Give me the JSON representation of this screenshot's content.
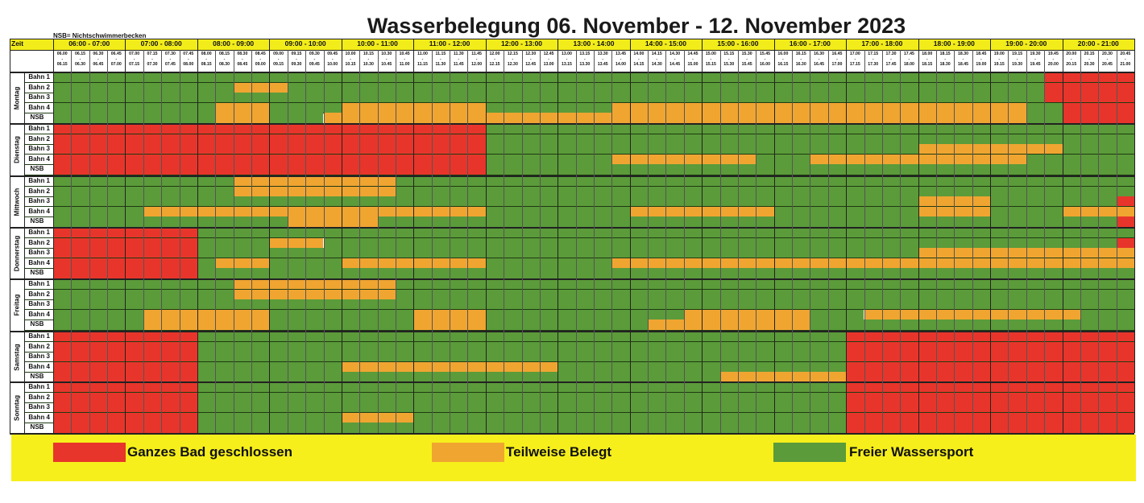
{
  "title": "Wasserbelegung 06. November - 12. November 2023",
  "nsb_note": "NSB= Nichtschwimmerbecken",
  "zeit_label": "Zeit",
  "colors": {
    "closed": "#e8352b",
    "partial": "#f0a531",
    "free": "#5b9b3a",
    "header": "#f2ec1a"
  },
  "hours": [
    "06:00 - 07:00",
    "07:00 - 08:00",
    "08:00 - 09:00",
    "09:00 - 10:00",
    "10:00 - 11:00",
    "11:00 - 12:00",
    "12:00 - 13:00",
    "13:00 - 14:00",
    "14:00 - 15:00",
    "15:00 - 16:00",
    "16:00 - 17:00",
    "17:00 - 18:00",
    "18:00 - 19:00",
    "19:00 - 20:00",
    "20:00 - 21:00"
  ],
  "quarters": [
    [
      "06.00",
      "06.15"
    ],
    [
      "06.15",
      "06.30"
    ],
    [
      "06.30",
      "06.45"
    ],
    [
      "06.45",
      "07.00"
    ],
    [
      "07.00",
      "07.15"
    ],
    [
      "07.15",
      "07.30"
    ],
    [
      "07.30",
      "07.45"
    ],
    [
      "07.45",
      "08.00"
    ],
    [
      "08.00",
      "08.15"
    ],
    [
      "08.15",
      "08.30"
    ],
    [
      "08.30",
      "08.45"
    ],
    [
      "08.45",
      "09.00"
    ],
    [
      "09.00",
      "09.15"
    ],
    [
      "09.15",
      "09.30"
    ],
    [
      "09.30",
      "09.45"
    ],
    [
      "09.45",
      "10.00"
    ],
    [
      "10.00",
      "10.15"
    ],
    [
      "10.15",
      "10.30"
    ],
    [
      "10.30",
      "10.45"
    ],
    [
      "10.45",
      "11.00"
    ],
    [
      "11.00",
      "11.15"
    ],
    [
      "11.15",
      "11.30"
    ],
    [
      "11.30",
      "11.45"
    ],
    [
      "11.45",
      "12.00"
    ],
    [
      "12.00",
      "12.15"
    ],
    [
      "12.15",
      "12.30"
    ],
    [
      "12.30",
      "12.45"
    ],
    [
      "12.45",
      "13.00"
    ],
    [
      "13.00",
      "13.15"
    ],
    [
      "13.15",
      "13.30"
    ],
    [
      "13.30",
      "13.45"
    ],
    [
      "13.45",
      "14.00"
    ],
    [
      "14.00",
      "14.15"
    ],
    [
      "14.15",
      "14.30"
    ],
    [
      "14.30",
      "14.45"
    ],
    [
      "14.45",
      "15.00"
    ],
    [
      "15.00",
      "15.15"
    ],
    [
      "15.15",
      "15.30"
    ],
    [
      "15.30",
      "15.45"
    ],
    [
      "15.45",
      "16.00"
    ],
    [
      "16.00",
      "16.15"
    ],
    [
      "16.15",
      "16.30"
    ],
    [
      "16.30",
      "16.45"
    ],
    [
      "16.45",
      "17.00"
    ],
    [
      "17.00",
      "17.15"
    ],
    [
      "17.15",
      "17.30"
    ],
    [
      "17.30",
      "17.45"
    ],
    [
      "17.45",
      "18.00"
    ],
    [
      "18.00",
      "18.15"
    ],
    [
      "18.15",
      "18.30"
    ],
    [
      "18.30",
      "18.45"
    ],
    [
      "18.45",
      "19.00"
    ],
    [
      "19.00",
      "19.15"
    ],
    [
      "19.15",
      "19.30"
    ],
    [
      "19.30",
      "19.45"
    ],
    [
      "19.45",
      "20.00"
    ],
    [
      "20.00",
      "20.15"
    ],
    [
      "20.15",
      "20.30"
    ],
    [
      "20.30",
      "20.45"
    ],
    [
      "20.45",
      "21.00"
    ]
  ],
  "days": [
    {
      "name": "Montag",
      "lanes": [
        {
          "label": "Bahn 1",
          "cells": "FFFFFFFFFFFFFFFFFFFFFFFFFFFFFFFFFFFFFFFFFFFFFFFFFFFFFFFCCCCC"
        },
        {
          "label": "Bahn 2",
          "cells": "FFFFFFFFFFPPPFFFFFFFFFFFFFFFFFFFFFFFFFFFFFFFFFFFFFFFFFFCCCCC"
        },
        {
          "label": "Bahn 3",
          "cells": "FFFFFFFFFFFFFFFFFFFFFFFFFFFFFFFFFFFFFFFFFFFFFFFFFFFFFFFCCCCC"
        },
        {
          "label": "Bahn 4",
          "cells": "FFFFFFFFFPPPFFFFPPPPPPPPFFFFFFFPPPPPPPPPPPPPPPPPPPPPPPFFCCCCC"
        },
        {
          "label": "NSB",
          "cells": "FFFFFFFFFPPPFFFPPPPPPPPPPPPPPPPPPPPPPPPPPPPPPPPPPPPPPPFFCCCCC"
        }
      ]
    },
    {
      "name": "Dienstag",
      "lanes": [
        {
          "label": "Bahn 1",
          "cells": "CCCCCCCCCCCCCCCCCCCCCCCCFFFFFFFFFFFFFFFFFFFFFFFFFFFFFFFFFFFFFC"
        },
        {
          "label": "Bahn 2",
          "cells": "CCCCCCCCCCCCCCCCCCCCCCCCFFFFFFFFFFFFFFFFFFFFFFFFFFFFFFFFFFFFFC"
        },
        {
          "label": "Bahn 3",
          "cells": "CCCCCCCCCCCCCCCCCCCCCCCCFFFFFFFFFFFFFFFFFFFFFFFFPPPPPPPPFFFFFC"
        },
        {
          "label": "Bahn 4",
          "cells": "CCCCCCCCCCCCCCCCCCCCCCCCFFFFFFFPPPPPPPPFFFPPPPPPPPPPPPFFFFFFFC"
        },
        {
          "label": "NSB",
          "cells": "CCCCCCCCCCCCCCCCCCCCCCCCFFFFFFFFFFFFFFFFFFFFFFFFFFFFFFFFFFFFFC"
        }
      ]
    },
    {
      "name": "Mittwoch",
      "lanes": [
        {
          "label": "Bahn 1",
          "cells": "FFFFFFFFFFPPPPPPPPPFFFFFFFFFFFFFFFFFFFFFFFFFFFFFFFFFFFFFFFFFC"
        },
        {
          "label": "Bahn 2",
          "cells": "FFFFFFFFFFPPPPPPPPPFFFFFFFFFFFFFFFFFFFFFFFFFFFFFFFFFFFFFFFFFC"
        },
        {
          "label": "Bahn 3",
          "cells": "FFFFFFFFFFFFFFFFFFFFFFFFFFFFFFFFFFFFFFFFFFFFFFFFPPPPFFFFFFFC"
        },
        {
          "label": "Bahn 4",
          "cells": "FFFFFPPPPPPPPPPPPPPPPPPPFFFFFFFFPPPPPPPPFFFFFFFFPPPPFFFFPPPPPC"
        },
        {
          "label": "NSB",
          "cells": "FFFFFFFFFFFFFPPPPPFFFFFFFFFFFFFFFFFFFFFFFFFFFFFFFFFFFFFFFFFC"
        }
      ]
    },
    {
      "name": "Donnerstag",
      "lanes": [
        {
          "label": "Bahn 1",
          "cells": "CCCCCCCCFFFFFFFFFFFFFFFFFFFFFFFFFFFFFFFFFFFFFFFFFFFFFFFFFFFFC"
        },
        {
          "label": "Bahn 2",
          "cells": "CCCCCCCCFFFFPPPFFFFFFFFFFFFFFFFFFFFFFFFFFFFFFFFFFFFFFFFFFFFC"
        },
        {
          "label": "Bahn 3",
          "cells": "CCCCCCCCFFFFFFFFFFFFFFFFFFFFFFFFFFFFFFFFFFFFFFFFPPPPPPPPPPPPPC"
        },
        {
          "label": "Bahn 4",
          "cells": "CCCCCCCCFPPPFFFFPPPPPPPPFFFFFFFPPPPPPPPPPPPPPPPPPPPPPPPPPPPPC"
        },
        {
          "label": "NSB",
          "cells": "CCCCCCCCFFFFFFFFFFFFFFFFFFFFFFFFFFFFFFFFFFFFFFFFFFFFFFFFFFFFC"
        }
      ]
    },
    {
      "name": "Freitag",
      "lanes": [
        {
          "label": "Bahn 1",
          "cells": "FFFFFFFFFFPPPPPPPPPFFFFFFFFFFFFFFFFFFFFFFFFFFFFFFFFFFFFFFFFFC"
        },
        {
          "label": "Bahn 2",
          "cells": "FFFFFFFFFFPPPPPPPPPFFFFFFFFFFFFFFFFFFFFFFFFFFFFFFFFFFFFFFFFFC"
        },
        {
          "label": "Bahn 3",
          "cells": "FFFFFFFFFFFFFFFFFFFFFFFFFFFFFFFFFFFFFFFFFFFFFFFFFFFFFFFFFFFFC"
        },
        {
          "label": "Bahn 4",
          "cells": "FFFFFPPPPPPPFFFFFFFFPPPPFFFFFFFFFFFPPPPPPPFFFPPPPPPPPPPPPFFFFC"
        },
        {
          "label": "NSB",
          "cells": "FFFFFPPPPPPPFFFFFFFFPPPPFFFFFFFFFPPPPPPPPPFFFFFFFFFFFFFFFFFFC"
        }
      ]
    },
    {
      "name": "Samstag",
      "lanes": [
        {
          "label": "Bahn 1",
          "cells": "CCCCCCCCFFFFFFFFFFFFFFFFFFFFFFFFFFFFFFFFFFFFCCCCCCCCCCCCCCCCC"
        },
        {
          "label": "Bahn 2",
          "cells": "CCCCCCCCFFFFFFFFFFFFFFFFFFFFFFFFFFFFFFFFFFFFCCCCCCCCCCCCCCCCC"
        },
        {
          "label": "Bahn 3",
          "cells": "CCCCCCCCFFFFFFFFFFFFFFFFFFFFFFFFFFFFFFFFFFFFCCCCCCCCCCCCCCCCC"
        },
        {
          "label": "Bahn 4",
          "cells": "CCCCCCCCFFFFFFFFPPPPPPPPPPPPFFFFFFFFFFFFFFFFCCCCCCCCCCCCCCCCC"
        },
        {
          "label": "NSB",
          "cells": "CCCCCCCCFFFFFFFFFFFFFFFFFFFFFFFFFFFFFPPPPPPPCCCCCCCCCCCCCCCCC"
        }
      ]
    },
    {
      "name": "Sonntag",
      "lanes": [
        {
          "label": "Bahn 1",
          "cells": "CCCCCCCCFFFFFFFFFFFFFFFFFFFFFFFFFFFFFFFFFFFFCCCCCCCCCCCCCCCCC"
        },
        {
          "label": "Bahn 2",
          "cells": "CCCCCCCCFFFFFFFFFFFFFFFFFFFFFFFFFFFFFFFFFFFFCCCCCCCCCCCCCCCCC"
        },
        {
          "label": "Bahn 3",
          "cells": "CCCCCCCCFFFFFFFFFFFFFFFFFFFFFFFFFFFFFFFFFFFFCCCCCCCCCCCCCCCCC"
        },
        {
          "label": "Bahn 4",
          "cells": "CCCCCCCCFFFFFFFFPPPPFFFFFFFFFFFFFFFFFFFFFFFFCCCCCCCCCCCCCCCCC"
        },
        {
          "label": "NSB",
          "cells": "CCCCCCCCFFFFFFFFFFFFFFFFFFFFFFFFFFFFFFFFFFFFCCCCCCCCCCCCCCCCC"
        }
      ]
    }
  ],
  "legend": [
    {
      "label": "Ganzes Bad geschlossen",
      "color": "#e8352b"
    },
    {
      "label": "Teilweise Belegt",
      "color": "#f0a531"
    },
    {
      "label": "Freier Wassersport",
      "color": "#5b9b3a"
    }
  ]
}
